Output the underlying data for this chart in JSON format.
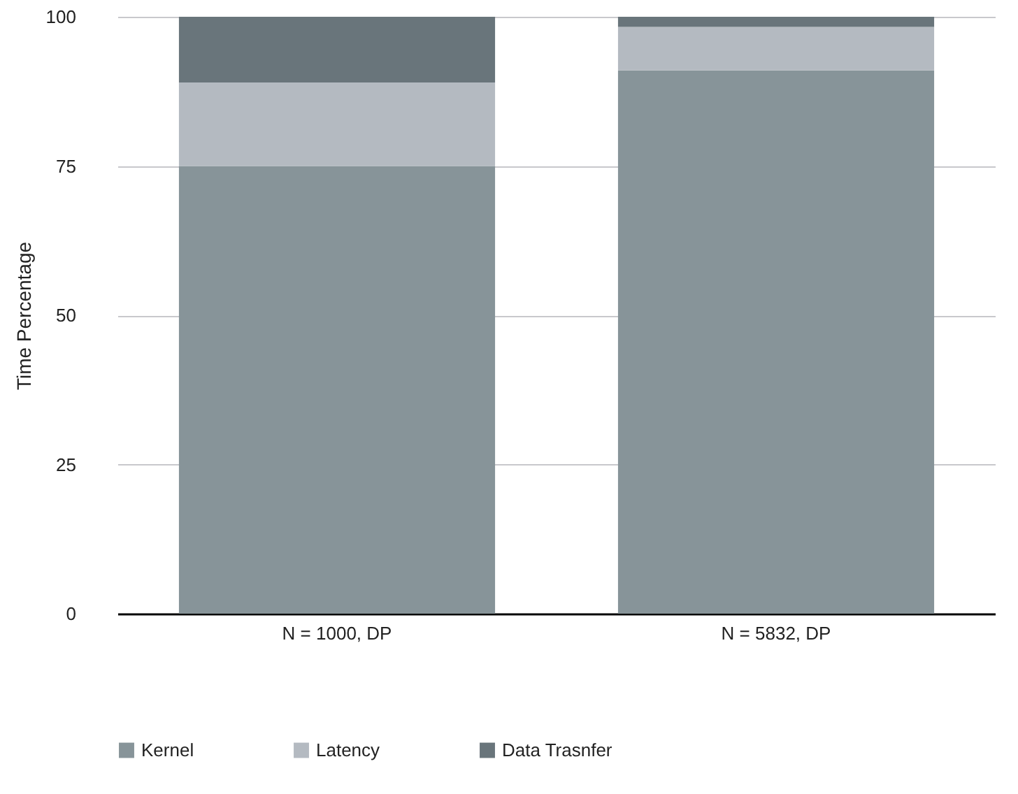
{
  "chart_data": {
    "type": "bar",
    "stacked": true,
    "ylabel": "Time Percentage",
    "categories": [
      "N = 1000, DP",
      "N = 5832, DP"
    ],
    "series": [
      {
        "name": "Kernel",
        "color": "#879499",
        "values": [
          75,
          91
        ]
      },
      {
        "name": "Latency",
        "color": "#b4bac1",
        "values": [
          14,
          7.3
        ]
      },
      {
        "name": "Data Trasnfer",
        "color": "#69757b",
        "values": [
          11,
          1.7
        ]
      }
    ],
    "ylim": [
      0,
      100
    ],
    "yticks": [
      0,
      25,
      50,
      75,
      100
    ],
    "grid": "y",
    "legend": "bottom"
  }
}
